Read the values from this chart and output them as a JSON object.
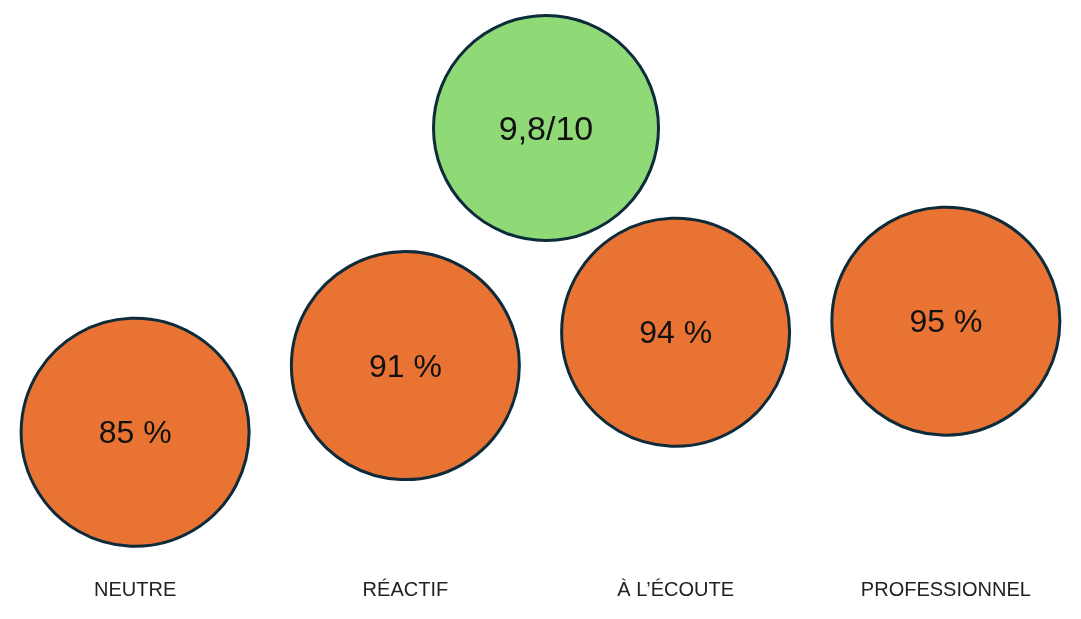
{
  "chart_data": {
    "type": "other",
    "categories": [
      "NEUTRE",
      "RÉACTIF",
      "À L’ÉCOUTE",
      "PROFESSIONNEL"
    ],
    "values": [
      85,
      91,
      94,
      95
    ],
    "value_labels": [
      "85 %",
      "91 %",
      "94 %",
      "95 %"
    ],
    "color": "#e87332",
    "annotations": [
      "9,8/10"
    ]
  }
}
